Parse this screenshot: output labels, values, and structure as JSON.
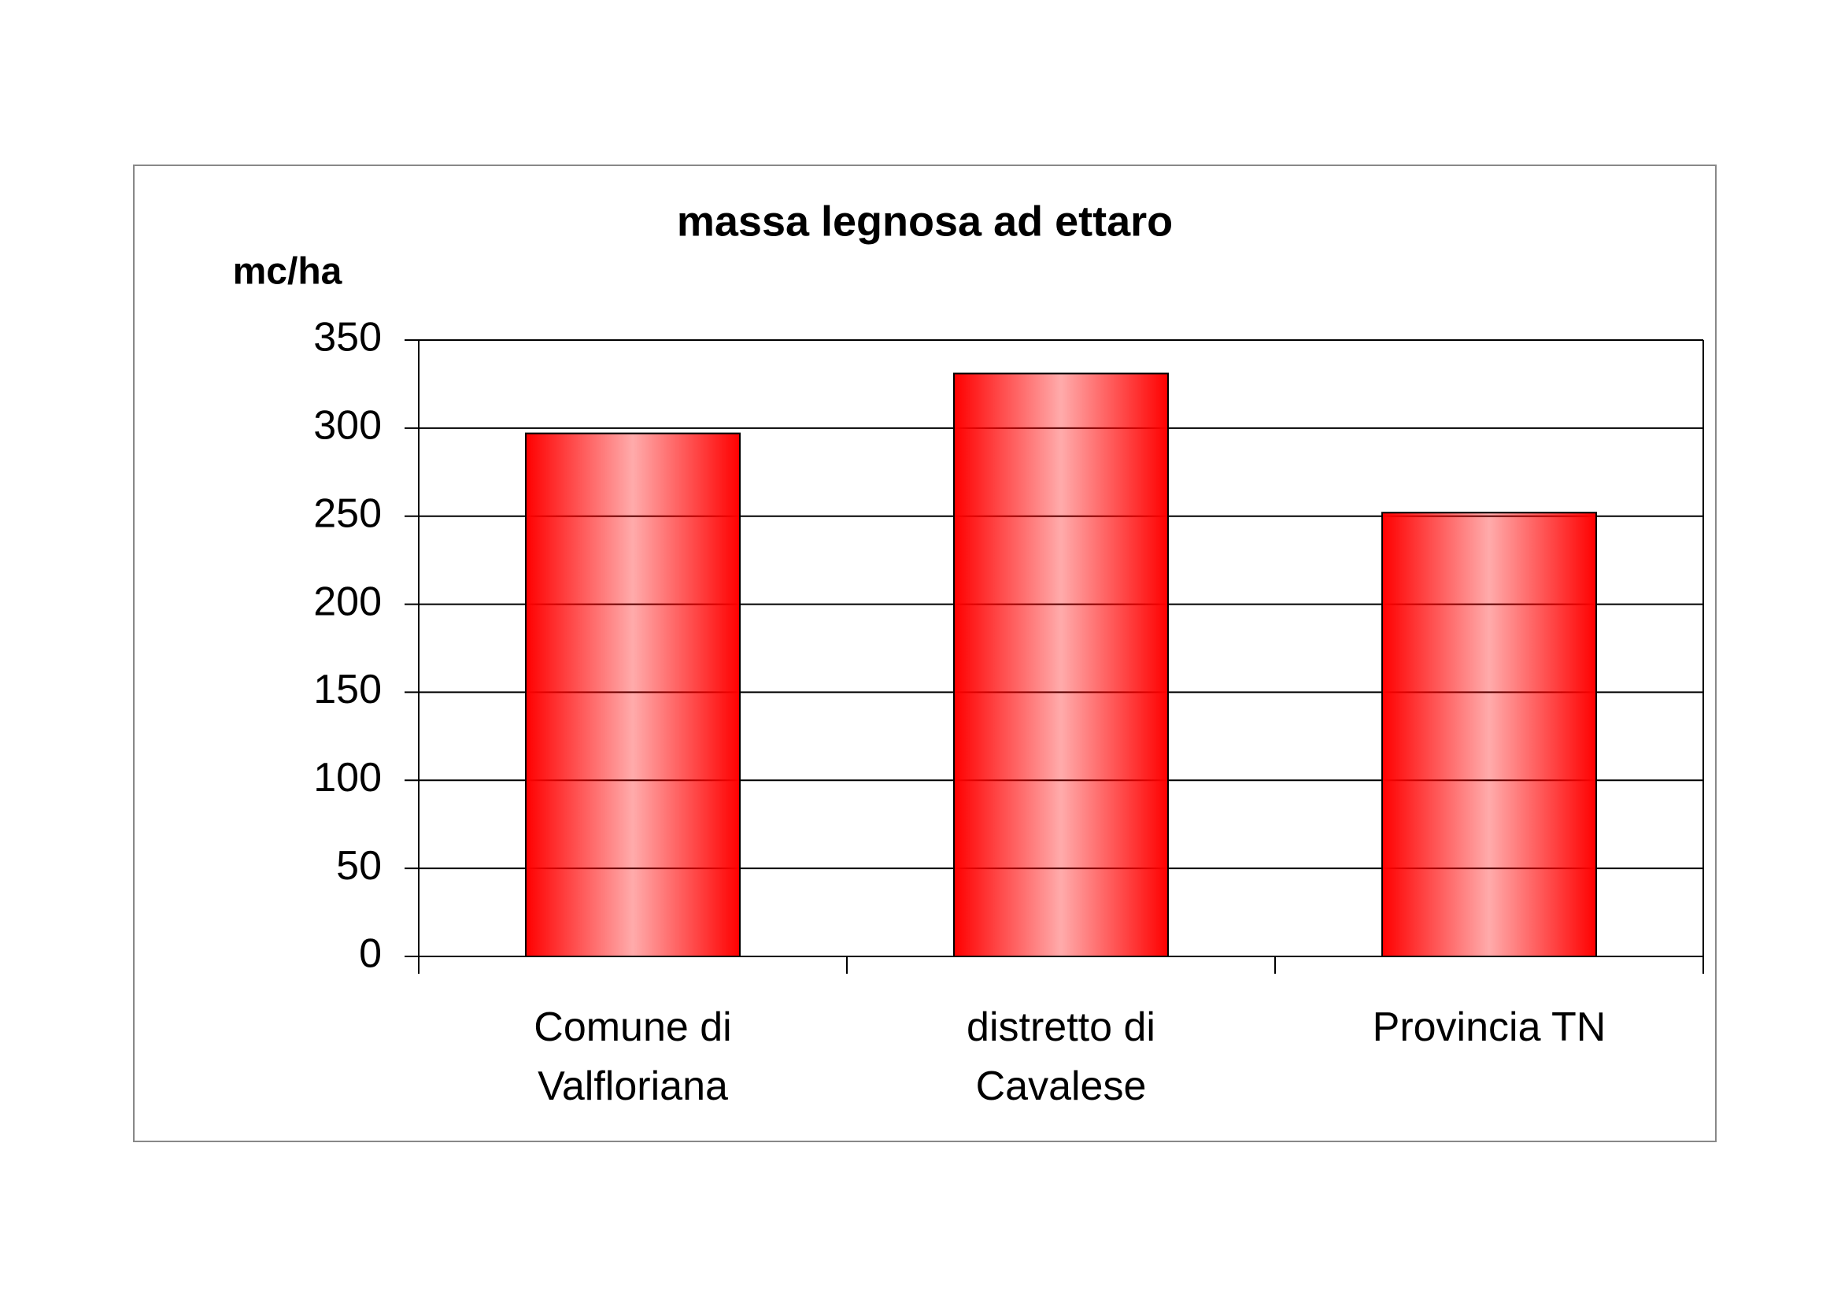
{
  "chart_data": {
    "type": "bar",
    "title": "massa legnosa ad ettaro",
    "y_label": "mc/ha",
    "categories": [
      "Comune di Valfloriana",
      "distretto di Cavalese",
      "Provincia TN"
    ],
    "values": [
      297,
      331,
      252
    ],
    "color": "#ff0000",
    "ylim": [
      0,
      350
    ],
    "yticks": [
      0,
      50,
      100,
      150,
      200,
      250,
      300,
      350
    ],
    "grid": true
  }
}
